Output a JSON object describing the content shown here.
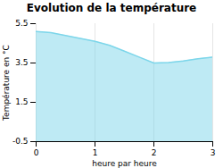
{
  "chart_data": {
    "type": "area",
    "title": "Evolution de la température",
    "xlabel": "heure par heure",
    "ylabel": "Température en °C",
    "color": "#7dd6ea",
    "x": [
      0,
      0.25,
      0.5,
      0.75,
      1.0,
      1.25,
      1.5,
      1.75,
      2.0,
      2.25,
      2.5,
      2.75,
      3.0
    ],
    "values": [
      5.1,
      5.05,
      4.9,
      4.75,
      4.6,
      4.4,
      4.1,
      3.8,
      3.5,
      3.52,
      3.6,
      3.72,
      3.8
    ],
    "xlim": [
      0,
      3
    ],
    "ylim": [
      -0.5,
      5.5
    ],
    "xticks": [
      0,
      1,
      2,
      3
    ],
    "yticks": [
      -0.5,
      1.5,
      3.5,
      5.5
    ],
    "grid": "x"
  }
}
